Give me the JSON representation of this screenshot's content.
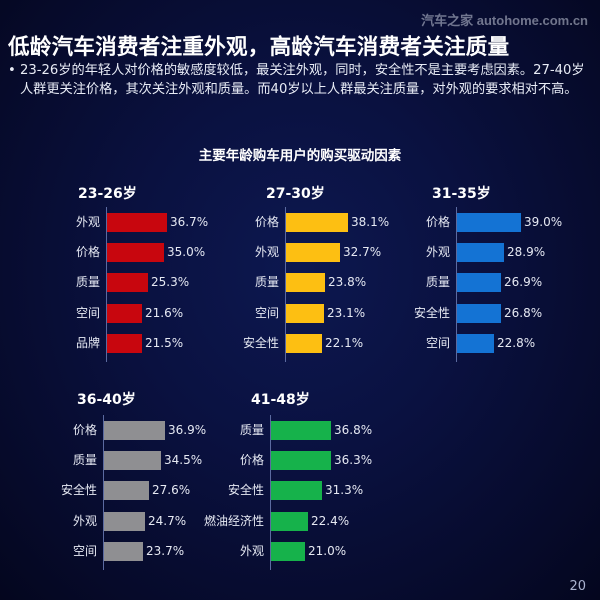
{
  "watermark": "汽车之家 autohome.com.cn",
  "title": "低龄汽车消费者注重外观，高龄汽车消费者关注质量",
  "bullet": {
    "marker": "•",
    "text": "23-26岁的年轻人对价格的敏感度较低，最关注外观，同时，安全性不是主要考虑因素。27-40岁人群更关注价格，其次关注外观和质量。而40岁以上人群最关注质量，对外观的要求相对不高。"
  },
  "page_number": "20",
  "chart_data": {
    "type": "bar",
    "orientation": "horizontal",
    "title": "主要年龄购车用户的购买驱动因素",
    "unit": "%",
    "panels": [
      {
        "title": "23-26岁",
        "color": "#c8060e",
        "categories": [
          "外观",
          "价格",
          "质量",
          "空间",
          "品牌"
        ],
        "values": [
          36.7,
          35.0,
          25.3,
          21.6,
          21.5
        ],
        "labels": [
          "36.7%",
          "35.0%",
          "25.3%",
          "21.6%",
          "21.5%"
        ]
      },
      {
        "title": "27-30岁",
        "color": "#fdbf12",
        "categories": [
          "价格",
          "外观",
          "质量",
          "空间",
          "安全性"
        ],
        "values": [
          38.1,
          32.7,
          23.8,
          23.1,
          22.1
        ],
        "labels": [
          "38.1%",
          "32.7%",
          "23.8%",
          "23.1%",
          "22.1%"
        ]
      },
      {
        "title": "31-35岁",
        "color": "#1473d4",
        "categories": [
          "价格",
          "外观",
          "质量",
          "安全性",
          "空间"
        ],
        "values": [
          39.0,
          28.9,
          26.9,
          26.8,
          22.8
        ],
        "labels": [
          "39.0%",
          "28.9%",
          "26.9%",
          "26.8%",
          "22.8%"
        ]
      },
      {
        "title": "36-40岁",
        "color": "#8f8f92",
        "categories": [
          "价格",
          "质量",
          "安全性",
          "外观",
          "空间"
        ],
        "values": [
          36.9,
          34.5,
          27.6,
          24.7,
          23.7
        ],
        "labels": [
          "36.9%",
          "34.5%",
          "27.6%",
          "24.7%",
          "23.7%"
        ]
      },
      {
        "title": "41-48岁",
        "color": "#16b24b",
        "categories": [
          "质量",
          "价格",
          "安全性",
          "燃油经济性",
          "外观"
        ],
        "values": [
          36.8,
          36.3,
          31.3,
          22.4,
          21.0
        ],
        "labels": [
          "36.8%",
          "36.3%",
          "31.3%",
          "22.4%",
          "21.0%"
        ]
      }
    ],
    "xlim": [
      0,
      40
    ],
    "grid": false,
    "legend": "none"
  }
}
